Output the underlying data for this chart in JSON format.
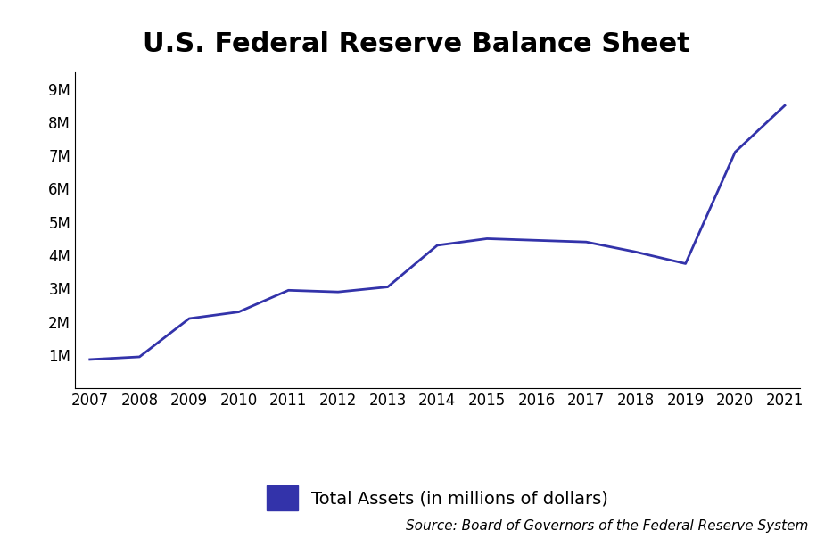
{
  "title": "U.S. Federal Reserve Balance Sheet",
  "years": [
    2007,
    2008,
    2009,
    2010,
    2011,
    2012,
    2013,
    2014,
    2015,
    2016,
    2017,
    2018,
    2019,
    2020,
    2021
  ],
  "values": [
    870000,
    950000,
    2100000,
    2300000,
    2950000,
    2900000,
    3050000,
    4300000,
    4500000,
    4450000,
    4400000,
    4100000,
    3750000,
    7100000,
    8500000
  ],
  "line_color": "#3333aa",
  "line_width": 2.0,
  "legend_label": "Total Assets (in millions of dollars)",
  "legend_color": "#3333aa",
  "source_text": "Source: Board of Governors of the Federal Reserve System",
  "ytick_labels": [
    "1M",
    "2M",
    "3M",
    "4M",
    "5M",
    "6M",
    "7M",
    "8M",
    "9M"
  ],
  "ytick_values": [
    1000000,
    2000000,
    3000000,
    4000000,
    5000000,
    6000000,
    7000000,
    8000000,
    9000000
  ],
  "ylim": [
    0,
    9500000
  ],
  "background_color": "#ffffff",
  "title_fontsize": 22,
  "tick_fontsize": 12,
  "legend_fontsize": 14,
  "source_fontsize": 11
}
